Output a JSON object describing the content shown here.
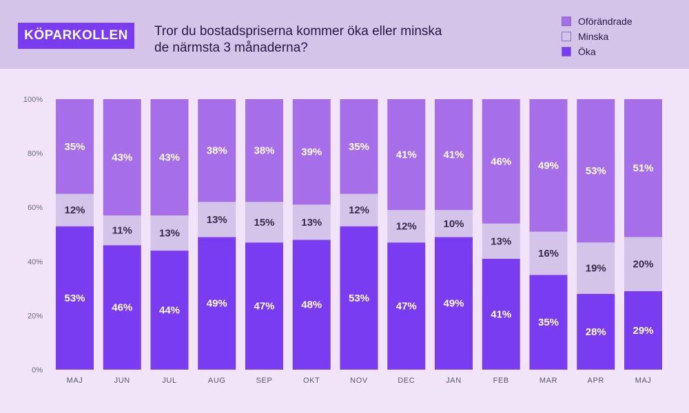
{
  "brand": "KÖPARKOLLEN",
  "title_line1": "Tror du bostadspriserna kommer öka eller minska",
  "title_line2": "de närmsta 3 månaderna?",
  "colors": {
    "okar": "#7a3cf0",
    "minska": "#d4c4ea",
    "oforandrade": "#a66ee9",
    "background": "#f1e4f8",
    "header": "#d4c4ea"
  },
  "legend": [
    {
      "label": "Oförändrade",
      "color": "#a66ee9"
    },
    {
      "label": "Minska",
      "color": "#d4c4ea"
    },
    {
      "label": "Öka",
      "color": "#7a3cf0"
    }
  ],
  "chart_data": {
    "type": "bar",
    "stacked": true,
    "title": "Tror du bostadspriserna kommer öka eller minska de närmsta 3 månaderna?",
    "categories": [
      "MAJ",
      "JUN",
      "JUL",
      "AUG",
      "SEP",
      "OKT",
      "NOV",
      "DEC",
      "JAN",
      "FEB",
      "MAR",
      "APR",
      "MAJ"
    ],
    "series": [
      {
        "name": "Öka",
        "color": "#7a3cf0",
        "values": [
          53,
          46,
          44,
          49,
          47,
          48,
          53,
          47,
          49,
          41,
          35,
          28,
          29
        ]
      },
      {
        "name": "Minska",
        "color": "#d4c4ea",
        "values": [
          12,
          11,
          13,
          13,
          15,
          13,
          12,
          12,
          10,
          13,
          16,
          19,
          20
        ]
      },
      {
        "name": "Oförändrade",
        "color": "#a66ee9",
        "values": [
          35,
          43,
          43,
          38,
          38,
          39,
          35,
          41,
          41,
          46,
          49,
          53,
          51
        ]
      }
    ],
    "yticks": [
      "0%",
      "20%",
      "40%",
      "60%",
      "80%",
      "100%"
    ],
    "ylim": [
      0,
      100
    ],
    "legend_position": "top-right",
    "grid": false
  }
}
